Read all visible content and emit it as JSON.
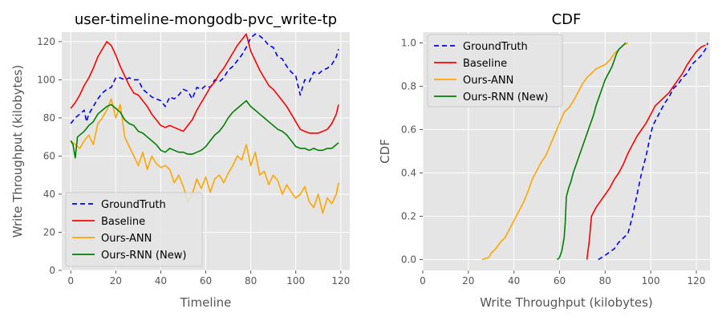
{
  "colors": {
    "ground_truth": "#0000ff",
    "baseline": "#ff0000",
    "ours_ann": "#ffa500",
    "ours_rnn": "#008000",
    "plot_background": "#e5e5e5",
    "grid": "#ffffff"
  },
  "chart_data": [
    {
      "type": "line",
      "title": "user-timeline-mongodb-pvc_write-tp",
      "xlabel": "Timeline",
      "ylabel": "Write Throughput (kilobytes)",
      "xlim": [
        -4,
        124
      ],
      "ylim": [
        0,
        125
      ],
      "xticks": [
        0,
        20,
        40,
        60,
        80,
        100,
        120
      ],
      "yticks": [
        0,
        20,
        40,
        60,
        80,
        100,
        120
      ],
      "xtick_labels": [
        "0",
        "20",
        "40",
        "60",
        "80",
        "100",
        "120"
      ],
      "ytick_labels": [
        "0",
        "20",
        "40",
        "60",
        "80",
        "100",
        "120"
      ],
      "grid": true,
      "legend_position": "lower-left",
      "series": [
        {
          "name": "GroundTruth",
          "color": "#0000ff",
          "dash": "dashed",
          "x": [
            0,
            2,
            4,
            6,
            7,
            8,
            10,
            12,
            14,
            16,
            18,
            20,
            22,
            24,
            26,
            28,
            30,
            32,
            34,
            36,
            38,
            40,
            42,
            44,
            46,
            48,
            50,
            52,
            54,
            56,
            58,
            60,
            62,
            64,
            66,
            68,
            70,
            72,
            74,
            76,
            78,
            80,
            82,
            84,
            86,
            88,
            90,
            92,
            94,
            96,
            98,
            100,
            102,
            104,
            106,
            108,
            110,
            112,
            114,
            116,
            118,
            119
          ],
          "y": [
            77,
            80,
            82,
            84,
            78,
            82,
            86,
            90,
            93,
            95,
            96,
            101,
            101,
            100,
            101,
            100,
            100,
            95,
            93,
            91,
            90,
            89,
            86,
            91,
            90,
            92,
            95,
            94,
            90,
            96,
            95,
            97,
            96,
            100,
            99,
            101,
            105,
            107,
            110,
            113,
            117,
            122,
            124,
            123,
            121,
            118,
            117,
            112,
            111,
            107,
            104,
            102,
            92,
            100,
            99,
            104,
            103,
            105,
            106,
            108,
            112,
            116
          ]
        },
        {
          "name": "Baseline",
          "color": "#ff0000",
          "dash": "solid",
          "x": [
            0,
            2,
            4,
            6,
            8,
            10,
            12,
            14,
            16,
            18,
            20,
            22,
            24,
            26,
            28,
            30,
            32,
            34,
            36,
            38,
            40,
            42,
            44,
            46,
            48,
            50,
            52,
            54,
            56,
            58,
            60,
            62,
            64,
            66,
            68,
            70,
            72,
            74,
            76,
            78,
            80,
            82,
            84,
            86,
            88,
            90,
            92,
            94,
            96,
            98,
            100,
            102,
            104,
            106,
            108,
            110,
            112,
            114,
            116,
            118,
            119
          ],
          "y": [
            85,
            88,
            92,
            97,
            101,
            106,
            112,
            116,
            120,
            118,
            113,
            107,
            102,
            97,
            93,
            92,
            89,
            86,
            82,
            79,
            76,
            75,
            76,
            75,
            74,
            73,
            76,
            79,
            84,
            88,
            92,
            96,
            99,
            103,
            106,
            110,
            114,
            118,
            121,
            124,
            115,
            110,
            105,
            101,
            97,
            95,
            92,
            89,
            86,
            82,
            78,
            74,
            73,
            72,
            72,
            72,
            73,
            74,
            77,
            82,
            87
          ]
        },
        {
          "name": "Ours-ANN",
          "color": "#ffa500",
          "dash": "solid",
          "x": [
            0,
            2,
            4,
            6,
            8,
            10,
            12,
            14,
            16,
            18,
            20,
            22,
            24,
            26,
            28,
            30,
            32,
            34,
            36,
            38,
            40,
            42,
            44,
            46,
            48,
            50,
            52,
            54,
            56,
            58,
            60,
            62,
            64,
            66,
            68,
            70,
            72,
            74,
            76,
            78,
            80,
            82,
            84,
            86,
            88,
            90,
            92,
            94,
            96,
            98,
            100,
            102,
            104,
            106,
            108,
            110,
            112,
            114,
            116,
            118,
            119
          ],
          "y": [
            68,
            66,
            64,
            68,
            71,
            66,
            77,
            80,
            84,
            90,
            80,
            87,
            70,
            65,
            60,
            55,
            62,
            53,
            60,
            56,
            54,
            55,
            53,
            46,
            50,
            44,
            36,
            40,
            48,
            43,
            49,
            41,
            48,
            50,
            46,
            51,
            55,
            60,
            58,
            66,
            55,
            62,
            50,
            52,
            45,
            50,
            47,
            40,
            45,
            41,
            38,
            40,
            44,
            36,
            33,
            40,
            30,
            38,
            35,
            40,
            46
          ]
        },
        {
          "name": "Ours-RNN (New)",
          "color": "#008000",
          "dash": "solid",
          "x": [
            0,
            1,
            2,
            3,
            4,
            6,
            8,
            10,
            12,
            14,
            16,
            18,
            20,
            22,
            24,
            26,
            28,
            30,
            32,
            34,
            36,
            38,
            40,
            42,
            44,
            46,
            48,
            50,
            52,
            54,
            56,
            58,
            60,
            62,
            64,
            66,
            68,
            70,
            72,
            74,
            76,
            78,
            80,
            82,
            84,
            86,
            88,
            90,
            92,
            94,
            96,
            98,
            100,
            102,
            104,
            106,
            108,
            110,
            112,
            114,
            116,
            118,
            119
          ],
          "y": [
            68,
            66,
            59,
            70,
            71,
            73,
            76,
            78,
            82,
            84,
            86,
            87,
            85,
            83,
            79,
            77,
            76,
            73,
            72,
            70,
            68,
            66,
            63,
            62,
            64,
            63,
            62,
            62,
            61,
            61,
            62,
            63,
            65,
            68,
            71,
            73,
            76,
            80,
            83,
            85,
            87,
            89,
            86,
            84,
            82,
            80,
            78,
            76,
            74,
            73,
            71,
            68,
            65,
            64,
            64,
            63,
            64,
            63,
            63,
            64,
            64,
            66,
            67
          ]
        }
      ]
    },
    {
      "type": "line",
      "title": "CDF",
      "xlabel": "Write Throughput (kilobytes)",
      "ylabel": "CDF",
      "xlim": [
        0,
        126
      ],
      "ylim": [
        -0.05,
        1.05
      ],
      "xticks": [
        0,
        20,
        40,
        60,
        80,
        100,
        120
      ],
      "yticks": [
        0.0,
        0.2,
        0.4,
        0.6,
        0.8,
        1.0
      ],
      "xtick_labels": [
        "0",
        "20",
        "40",
        "60",
        "80",
        "100",
        "120"
      ],
      "ytick_labels": [
        "0.0",
        "0.2",
        "0.4",
        "0.6",
        "0.8",
        "1.0"
      ],
      "grid": true,
      "legend_position": "upper-left",
      "series": [
        {
          "name": "GroundTruth",
          "color": "#0000ff",
          "dash": "dashed",
          "x": [
            77,
            80,
            84,
            86,
            88,
            90,
            91,
            92,
            93,
            94,
            95,
            96,
            97,
            98,
            99,
            100,
            101,
            102,
            104,
            106,
            108,
            110,
            112,
            114,
            116,
            118,
            120,
            122,
            124,
            125
          ],
          "y": [
            0.0,
            0.02,
            0.05,
            0.08,
            0.1,
            0.12,
            0.16,
            0.2,
            0.25,
            0.3,
            0.35,
            0.4,
            0.44,
            0.48,
            0.53,
            0.58,
            0.62,
            0.64,
            0.68,
            0.72,
            0.75,
            0.79,
            0.81,
            0.84,
            0.86,
            0.9,
            0.92,
            0.94,
            0.97,
            1.0
          ]
        },
        {
          "name": "Baseline",
          "color": "#ff0000",
          "dash": "solid",
          "x": [
            72,
            73,
            74,
            75,
            76,
            78,
            80,
            82,
            84,
            86,
            88,
            90,
            92,
            94,
            96,
            98,
            100,
            102,
            104,
            106,
            108,
            110,
            112,
            114,
            116,
            118,
            120,
            122,
            124
          ],
          "y": [
            0.0,
            0.08,
            0.2,
            0.22,
            0.24,
            0.27,
            0.3,
            0.33,
            0.37,
            0.4,
            0.44,
            0.49,
            0.53,
            0.57,
            0.6,
            0.63,
            0.67,
            0.71,
            0.73,
            0.75,
            0.77,
            0.8,
            0.83,
            0.86,
            0.9,
            0.93,
            0.96,
            0.98,
            0.99
          ]
        },
        {
          "name": "Ours-ANN",
          "color": "#ffa500",
          "dash": "solid",
          "x": [
            26,
            29,
            30,
            32,
            34,
            36,
            38,
            40,
            42,
            44,
            46,
            48,
            50,
            52,
            54,
            56,
            58,
            60,
            62,
            64,
            66,
            68,
            70,
            72,
            74,
            76,
            78,
            80,
            82,
            84,
            86,
            88,
            90
          ],
          "y": [
            0.0,
            0.01,
            0.03,
            0.05,
            0.08,
            0.1,
            0.14,
            0.18,
            0.22,
            0.26,
            0.31,
            0.37,
            0.41,
            0.45,
            0.48,
            0.53,
            0.58,
            0.63,
            0.68,
            0.7,
            0.73,
            0.77,
            0.81,
            0.84,
            0.86,
            0.88,
            0.89,
            0.9,
            0.92,
            0.95,
            0.97,
            0.99,
            1.0
          ]
        },
        {
          "name": "Ours-RNN (New)",
          "color": "#008000",
          "dash": "solid",
          "x": [
            59,
            60,
            61,
            62,
            62.5,
            63,
            64,
            65,
            66,
            67,
            68,
            69,
            70,
            71,
            72,
            73,
            74,
            75,
            76,
            77,
            78,
            79,
            80,
            81,
            82,
            83,
            84,
            85,
            86,
            87,
            88,
            89
          ],
          "y": [
            0.0,
            0.01,
            0.04,
            0.1,
            0.17,
            0.29,
            0.33,
            0.36,
            0.4,
            0.43,
            0.46,
            0.49,
            0.52,
            0.55,
            0.58,
            0.61,
            0.64,
            0.67,
            0.71,
            0.74,
            0.77,
            0.8,
            0.83,
            0.85,
            0.87,
            0.89,
            0.92,
            0.95,
            0.97,
            0.98,
            0.99,
            1.0
          ]
        }
      ]
    }
  ]
}
